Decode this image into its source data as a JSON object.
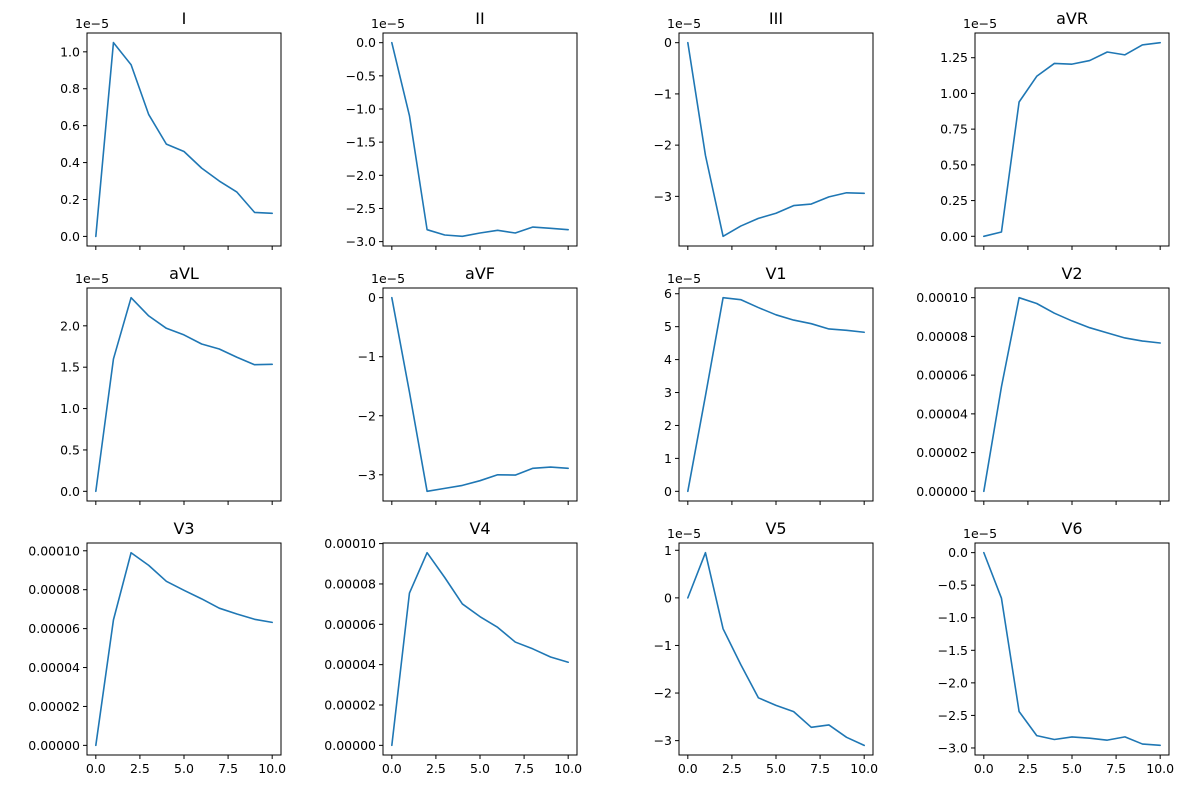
{
  "figure": {
    "background": "#ffffff",
    "line_color": "#1f77b4"
  },
  "chart_data": [
    {
      "type": "line",
      "title": "I",
      "x": [
        0,
        1,
        2,
        3,
        4,
        5,
        6,
        7,
        8,
        9,
        10
      ],
      "y": [
        0.0,
        1.05,
        0.93,
        0.66,
        0.5,
        0.46,
        0.37,
        0.3,
        0.24,
        0.13,
        0.125
      ],
      "scale_offset": "1e−5",
      "xticks": [
        0,
        2.5,
        5.0,
        7.5,
        10.0
      ],
      "xtick_labels": [],
      "yticks": [
        0.0,
        0.2,
        0.4,
        0.6,
        0.8,
        1.0
      ],
      "ytick_labels": [
        "0.0",
        "0.2",
        "0.4",
        "0.6",
        "0.8",
        "1.0"
      ],
      "xlim": [
        -0.5,
        10.5
      ],
      "ylim": [
        -0.052,
        1.102
      ]
    },
    {
      "type": "line",
      "title": "II",
      "x": [
        0,
        1,
        2,
        3,
        4,
        5,
        6,
        7,
        8,
        9,
        10
      ],
      "y": [
        0.0,
        -1.1,
        -2.82,
        -2.9,
        -2.92,
        -2.87,
        -2.83,
        -2.87,
        -2.78,
        -2.8,
        -2.82
      ],
      "scale_offset": "1e−5",
      "xticks": [
        0,
        2.5,
        5.0,
        7.5,
        10.0
      ],
      "xtick_labels": [],
      "yticks": [
        0.0,
        -0.5,
        -1.0,
        -1.5,
        -2.0,
        -2.5,
        -3.0
      ],
      "ytick_labels": [
        "0.0",
        "−0.5",
        "−1.0",
        "−1.5",
        "−2.0",
        "−2.5",
        "−3.0"
      ],
      "xlim": [
        -0.5,
        10.5
      ],
      "ylim": [
        -3.066,
        0.146
      ]
    },
    {
      "type": "line",
      "title": "III",
      "x": [
        0,
        1,
        2,
        3,
        4,
        5,
        6,
        7,
        8,
        9,
        10
      ],
      "y": [
        0.0,
        -2.2,
        -3.78,
        -3.58,
        -3.43,
        -3.33,
        -3.18,
        -3.15,
        -3.01,
        -2.93,
        -2.94
      ],
      "scale_offset": "1e−5",
      "xticks": [
        0,
        2.5,
        5.0,
        7.5,
        10.0
      ],
      "xtick_labels": [],
      "yticks": [
        0,
        -1,
        -2,
        -3
      ],
      "ytick_labels": [
        "0",
        "−1",
        "−2",
        "−3"
      ],
      "xlim": [
        -0.5,
        10.5
      ],
      "ylim": [
        -3.969,
        0.189
      ]
    },
    {
      "type": "line",
      "title": "aVR",
      "x": [
        0,
        1,
        2,
        3,
        4,
        5,
        6,
        7,
        8,
        9,
        10
      ],
      "y": [
        0.0,
        0.03,
        0.94,
        1.12,
        1.21,
        1.205,
        1.23,
        1.29,
        1.27,
        1.34,
        1.355
      ],
      "scale_offset": "1e−5",
      "xticks": [
        0,
        2.5,
        5.0,
        7.5,
        10.0
      ],
      "xtick_labels": [],
      "yticks": [
        0.0,
        0.25,
        0.5,
        0.75,
        1.0,
        1.25
      ],
      "ytick_labels": [
        "0.00",
        "0.25",
        "0.50",
        "0.75",
        "1.00",
        "1.25"
      ],
      "xlim": [
        -0.5,
        10.5
      ],
      "ylim": [
        -0.068,
        1.423
      ]
    },
    {
      "type": "line",
      "title": "aVL",
      "x": [
        0,
        1,
        2,
        3,
        4,
        5,
        6,
        7,
        8,
        9,
        10
      ],
      "y": [
        0.0,
        1.6,
        2.34,
        2.12,
        1.97,
        1.89,
        1.78,
        1.72,
        1.62,
        1.53,
        1.535
      ],
      "scale_offset": "1e−5",
      "xticks": [
        0,
        2.5,
        5.0,
        7.5,
        10.0
      ],
      "xtick_labels": [],
      "yticks": [
        0.0,
        0.5,
        1.0,
        1.5,
        2.0
      ],
      "ytick_labels": [
        "0.0",
        "0.5",
        "1.0",
        "1.5",
        "2.0"
      ],
      "xlim": [
        -0.5,
        10.5
      ],
      "ylim": [
        -0.117,
        2.457
      ]
    },
    {
      "type": "line",
      "title": "aVF",
      "x": [
        0,
        1,
        2,
        3,
        4,
        5,
        6,
        7,
        8,
        9,
        10
      ],
      "y": [
        0.0,
        -1.6,
        -3.28,
        -3.23,
        -3.18,
        -3.1,
        -3.0,
        -3.005,
        -2.89,
        -2.87,
        -2.89
      ],
      "scale_offset": "1e−5",
      "xticks": [
        0,
        2.5,
        5.0,
        7.5,
        10.0
      ],
      "xtick_labels": [],
      "yticks": [
        0,
        -1,
        -2,
        -3
      ],
      "ytick_labels": [
        "0",
        "−1",
        "−2",
        "−3"
      ],
      "xlim": [
        -0.5,
        10.5
      ],
      "ylim": [
        -3.444,
        0.164
      ]
    },
    {
      "type": "line",
      "title": "V1",
      "x": [
        0,
        1,
        2,
        3,
        4,
        5,
        6,
        7,
        8,
        9,
        10
      ],
      "y": [
        0.0,
        2.9,
        5.88,
        5.82,
        5.58,
        5.36,
        5.2,
        5.09,
        4.93,
        4.89,
        4.83
      ],
      "scale_offset": "1e−5",
      "xticks": [
        0,
        2.5,
        5.0,
        7.5,
        10.0
      ],
      "xtick_labels": [],
      "yticks": [
        0,
        1,
        2,
        3,
        4,
        5,
        6
      ],
      "ytick_labels": [
        "0",
        "1",
        "2",
        "3",
        "4",
        "5",
        "6"
      ],
      "xlim": [
        -0.5,
        10.5
      ],
      "ylim": [
        -0.294,
        6.174
      ]
    },
    {
      "type": "line",
      "title": "V2",
      "x": [
        0,
        1,
        2,
        3,
        4,
        5,
        6,
        7,
        8,
        9,
        10
      ],
      "y": [
        0.0,
        5.4e-05,
        0.0001,
        9.7e-05,
        9.2e-05,
        8.8e-05,
        8.45e-05,
        8.18e-05,
        7.92e-05,
        7.76e-05,
        7.66e-05
      ],
      "scale_offset": "",
      "xticks": [
        0,
        2.5,
        5.0,
        7.5,
        10.0
      ],
      "xtick_labels": [],
      "yticks": [
        0.0,
        2e-05,
        4e-05,
        6e-05,
        8e-05,
        0.0001
      ],
      "ytick_labels": [
        "0.00000",
        "0.00002",
        "0.00004",
        "0.00006",
        "0.00008",
        "0.00010"
      ],
      "xlim": [
        -0.5,
        10.5
      ],
      "ylim": [
        -5e-06,
        0.000105
      ]
    },
    {
      "type": "line",
      "title": "V3",
      "x": [
        0,
        1,
        2,
        3,
        4,
        5,
        6,
        7,
        8,
        9,
        10
      ],
      "y": [
        0.0,
        6.45e-05,
        9.9e-05,
        9.25e-05,
        8.43e-05,
        7.97e-05,
        7.53e-05,
        7.05e-05,
        6.75e-05,
        6.48e-05,
        6.32e-05
      ],
      "scale_offset": "",
      "xticks": [
        0,
        2.5,
        5.0,
        7.5,
        10.0
      ],
      "xtick_labels": [
        "0.0",
        "2.5",
        "5.0",
        "7.5",
        "10.0"
      ],
      "yticks": [
        0.0,
        2e-05,
        4e-05,
        6e-05,
        8e-05,
        0.0001
      ],
      "ytick_labels": [
        "0.00000",
        "0.00002",
        "0.00004",
        "0.00006",
        "0.00008",
        "0.00010"
      ],
      "xlim": [
        -0.5,
        10.5
      ],
      "ylim": [
        -4.95e-06,
        0.000104
      ]
    },
    {
      "type": "line",
      "title": "V4",
      "x": [
        0,
        1,
        2,
        3,
        4,
        5,
        6,
        7,
        8,
        9,
        10
      ],
      "y": [
        0.0,
        7.55e-05,
        9.55e-05,
        8.32e-05,
        7.01e-05,
        6.38e-05,
        5.85e-05,
        5.12e-05,
        4.78e-05,
        4.38e-05,
        4.12e-05
      ],
      "scale_offset": "",
      "xticks": [
        0,
        2.5,
        5.0,
        7.5,
        10.0
      ],
      "xtick_labels": [
        "0.0",
        "2.5",
        "5.0",
        "7.5",
        "10.0"
      ],
      "yticks": [
        0.0,
        2e-05,
        4e-05,
        6e-05,
        8e-05,
        0.0001
      ],
      "ytick_labels": [
        "0.00000",
        "0.00002",
        "0.00004",
        "0.00006",
        "0.00008",
        "0.00010"
      ],
      "xlim": [
        -0.5,
        10.5
      ],
      "ylim": [
        -4.78e-06,
        0.0001003
      ]
    },
    {
      "type": "line",
      "title": "V5",
      "x": [
        0,
        1,
        2,
        3,
        4,
        5,
        6,
        7,
        8,
        9,
        10
      ],
      "y": [
        0.0,
        0.95,
        -0.65,
        -1.4,
        -2.1,
        -2.26,
        -2.39,
        -2.72,
        -2.67,
        -2.93,
        -3.1
      ],
      "scale_offset": "1e−5",
      "xticks": [
        0,
        2.5,
        5.0,
        7.5,
        10.0
      ],
      "xtick_labels": [
        "0.0",
        "2.5",
        "5.0",
        "7.5",
        "10.0"
      ],
      "yticks": [
        1,
        0,
        -1,
        -2,
        -3
      ],
      "ytick_labels": [
        "1",
        "0",
        "−1",
        "−2",
        "−3"
      ],
      "xlim": [
        -0.5,
        10.5
      ],
      "ylim": [
        -3.302,
        1.153
      ]
    },
    {
      "type": "line",
      "title": "V6",
      "x": [
        0,
        1,
        2,
        3,
        4,
        5,
        6,
        7,
        8,
        9,
        10
      ],
      "y": [
        0.0,
        -0.7,
        -2.44,
        -2.81,
        -2.87,
        -2.83,
        -2.85,
        -2.88,
        -2.83,
        -2.94,
        -2.96
      ],
      "scale_offset": "1e−5",
      "xticks": [
        0,
        2.5,
        5.0,
        7.5,
        10.0
      ],
      "xtick_labels": [
        "0.0",
        "2.5",
        "5.0",
        "7.5",
        "10.0"
      ],
      "yticks": [
        0.0,
        -0.5,
        -1.0,
        -1.5,
        -2.0,
        -2.5,
        -3.0
      ],
      "ytick_labels": [
        "0.0",
        "−0.5",
        "−1.0",
        "−1.5",
        "−2.0",
        "−2.5",
        "−3.0"
      ],
      "xlim": [
        -0.5,
        10.5
      ],
      "ylim": [
        -3.108,
        0.148
      ]
    }
  ]
}
